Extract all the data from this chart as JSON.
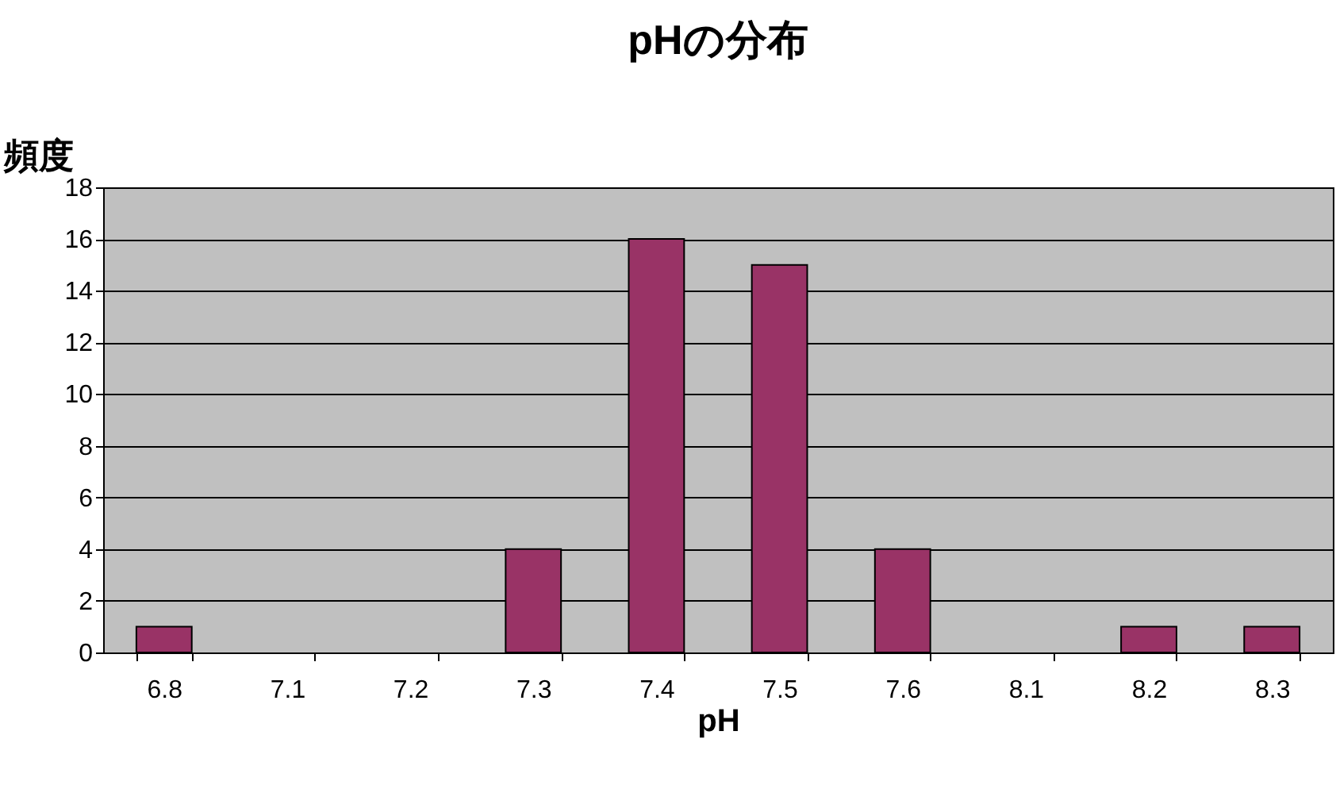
{
  "chart_data": {
    "type": "bar",
    "title": "pHの分布",
    "xlabel": "pH",
    "ylabel": "頻度",
    "categories": [
      "6.8",
      "7.1",
      "7.2",
      "7.3",
      "7.4",
      "7.5",
      "7.6",
      "8.1",
      "8.2",
      "8.3"
    ],
    "values": [
      1,
      0,
      0,
      4,
      16,
      15,
      4,
      0,
      1,
      1
    ],
    "color": "#993366",
    "ylim": [
      0,
      18
    ],
    "yticks": [
      0,
      2,
      4,
      6,
      8,
      10,
      12,
      14,
      16,
      18
    ],
    "grid": "y"
  }
}
